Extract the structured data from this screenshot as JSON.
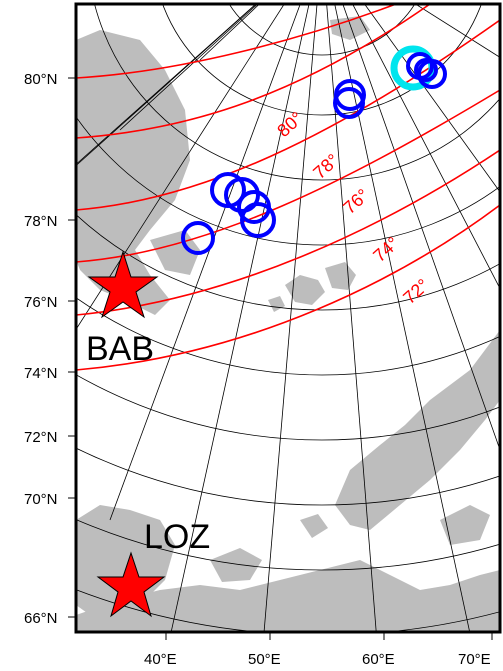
{
  "map": {
    "lat_labels": [
      {
        "text": "80°N"
      },
      {
        "text": "78°N"
      },
      {
        "text": "76°N"
      },
      {
        "text": "74°N"
      },
      {
        "text": "72°N"
      },
      {
        "text": "70°N"
      },
      {
        "text": "66°N"
      }
    ],
    "lon_labels": [
      {
        "text": "40°E"
      },
      {
        "text": "50°E"
      },
      {
        "text": "60°E"
      },
      {
        "text": "70°E"
      }
    ],
    "contour_labels": [
      {
        "text": "80°"
      },
      {
        "text": "78°"
      },
      {
        "text": "76°"
      },
      {
        "text": "74°"
      },
      {
        "text": "72°"
      }
    ],
    "stations": [
      {
        "name": "BAB"
      },
      {
        "name": "LOZ"
      }
    ],
    "colors": {
      "land": "#bdbdbd",
      "grid": "#000000",
      "contour": "#ff0000",
      "event": "#0000ff",
      "highlight": "#00e5ee",
      "station": "#ff0000"
    }
  }
}
